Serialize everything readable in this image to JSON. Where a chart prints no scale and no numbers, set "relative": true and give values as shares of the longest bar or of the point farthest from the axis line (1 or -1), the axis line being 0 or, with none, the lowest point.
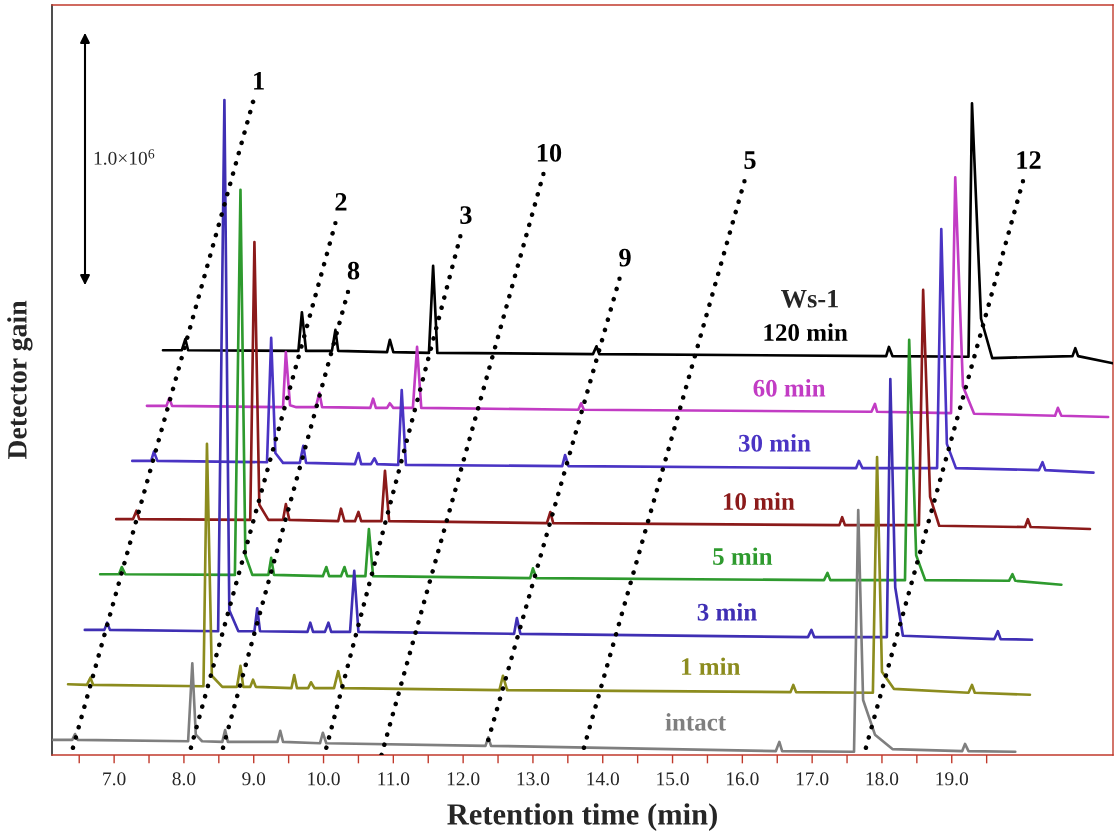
{
  "chart_data": {
    "type": "line",
    "relative": true,
    "xlabel": "Retention time (min)",
    "ylabel": "Detector gain",
    "xlim": [
      6.11,
      21.31
    ],
    "xticks": [
      {
        "value": 6.5,
        "label": null
      },
      {
        "value": 7,
        "label": "7.0"
      },
      {
        "value": 7.5,
        "label": null
      },
      {
        "value": 8,
        "label": "8.0"
      },
      {
        "value": 8.5,
        "label": null
      },
      {
        "value": 9,
        "label": "9.0"
      },
      {
        "value": 9.5,
        "label": null
      },
      {
        "value": 10,
        "label": "10.0"
      },
      {
        "value": 10.5,
        "label": null
      },
      {
        "value": 11,
        "label": "11.0"
      },
      {
        "value": 11.5,
        "label": null
      },
      {
        "value": 12,
        "label": "12.0"
      },
      {
        "value": 12.5,
        "label": null
      },
      {
        "value": 13,
        "label": "13.0"
      },
      {
        "value": 13.5,
        "label": null
      },
      {
        "value": 14,
        "label": "14.0"
      },
      {
        "value": 14.5,
        "label": null
      },
      {
        "value": 15,
        "label": "15.0"
      },
      {
        "value": 15.5,
        "label": null
      },
      {
        "value": 16,
        "label": "16.0"
      },
      {
        "value": 16.5,
        "label": null
      },
      {
        "value": 17,
        "label": "17.0"
      },
      {
        "value": 17.5,
        "label": null
      },
      {
        "value": 18,
        "label": "18.0"
      },
      {
        "value": 18.5,
        "label": null
      },
      {
        "value": 19,
        "label": "19.0"
      },
      {
        "value": 19.5,
        "label": null
      }
    ],
    "grid": false,
    "legend": false,
    "line_style": "solid",
    "annotations": [
      "Ws-1",
      "1.0×10$^{6}$"
    ],
    "series": [
      {
        "name": "intact",
        "color": "#7f7f7f",
        "x": [
          6.13,
          6.4,
          6.44,
          6.48,
          8.06,
          8.12,
          8.17,
          8.26,
          8.55,
          8.59,
          8.63,
          9.34,
          9.38,
          9.42,
          9.95,
          9.99,
          10.04,
          12.32,
          12.36,
          12.4,
          16.48,
          16.53,
          16.57,
          17.6,
          17.66,
          17.73,
          17.9,
          18.15,
          19.15,
          19.19,
          19.24,
          19.91
        ],
        "values": [
          0.023,
          0.023,
          0.032,
          0.023,
          0.021,
          0.14,
          0.031,
          0.021,
          0.02,
          0.038,
          0.02,
          0.02,
          0.037,
          0.02,
          0.018,
          0.034,
          0.018,
          0.014,
          0.027,
          0.014,
          0.006,
          0.02,
          0.006,
          0.005,
          0.374,
          0.084,
          0.031,
          0.009,
          0.006,
          0.017,
          0.006,
          0.005
        ]
      },
      {
        "name": "1 min",
        "color": "#8c8c1e",
        "x": [
          6.34,
          6.61,
          6.66,
          6.7,
          8.28,
          8.33,
          8.4,
          8.55,
          8.76,
          8.81,
          8.85,
          8.95,
          8.99,
          9.03,
          9.54,
          9.58,
          9.62,
          9.78,
          9.82,
          9.87,
          10.15,
          10.21,
          10.27,
          12.52,
          12.57,
          12.63,
          16.69,
          16.73,
          16.77,
          17.87,
          17.93,
          18.0,
          18.17,
          19.24,
          19.29,
          19.33,
          20.12
        ],
        "values": [
          0.108,
          0.107,
          0.118,
          0.107,
          0.105,
          0.475,
          0.121,
          0.104,
          0.104,
          0.136,
          0.104,
          0.104,
          0.115,
          0.104,
          0.102,
          0.122,
          0.102,
          0.102,
          0.111,
          0.102,
          0.102,
          0.128,
          0.102,
          0.099,
          0.121,
          0.099,
          0.096,
          0.107,
          0.096,
          0.095,
          0.455,
          0.127,
          0.101,
          0.095,
          0.107,
          0.095,
          0.092
        ]
      },
      {
        "name": "3 min",
        "color": "#3f2fb4",
        "x": [
          6.58,
          6.86,
          6.9,
          6.94,
          8.49,
          8.58,
          8.65,
          8.78,
          9.01,
          9.05,
          9.09,
          9.77,
          9.81,
          9.85,
          10.02,
          10.07,
          10.11,
          10.38,
          10.44,
          10.5,
          12.73,
          12.77,
          12.82,
          16.94,
          16.99,
          17.03,
          18.07,
          18.12,
          18.19,
          18.3,
          19.61,
          19.66,
          19.7,
          20.15
        ],
        "values": [
          0.191,
          0.191,
          0.202,
          0.191,
          0.189,
          1.0,
          0.221,
          0.189,
          0.189,
          0.224,
          0.189,
          0.188,
          0.202,
          0.188,
          0.188,
          0.202,
          0.188,
          0.188,
          0.281,
          0.188,
          0.185,
          0.209,
          0.185,
          0.18,
          0.191,
          0.18,
          0.18,
          0.574,
          0.256,
          0.182,
          0.177,
          0.189,
          0.177,
          0.176
        ]
      },
      {
        "name": "5 min",
        "color": "#2e9a2e",
        "x": [
          6.8,
          7.07,
          7.11,
          7.16,
          8.73,
          8.81,
          8.88,
          8.98,
          9.21,
          9.25,
          9.29,
          9.99,
          10.04,
          10.08,
          10.25,
          10.3,
          10.34,
          10.6,
          10.65,
          10.71,
          12.96,
          13.0,
          13.05,
          17.17,
          17.22,
          17.26,
          18.33,
          18.39,
          18.49,
          18.62,
          19.82,
          19.87,
          19.91,
          20.57
        ],
        "values": [
          0.276,
          0.276,
          0.287,
          0.276,
          0.275,
          0.863,
          0.305,
          0.275,
          0.275,
          0.301,
          0.275,
          0.273,
          0.287,
          0.273,
          0.273,
          0.287,
          0.273,
          0.273,
          0.345,
          0.273,
          0.27,
          0.285,
          0.27,
          0.267,
          0.278,
          0.267,
          0.267,
          0.634,
          0.305,
          0.267,
          0.266,
          0.276,
          0.266,
          0.26
        ]
      },
      {
        "name": "10 min",
        "color": "#8b1a1a",
        "x": [
          7.03,
          7.27,
          7.32,
          7.36,
          8.95,
          9.01,
          9.08,
          9.21,
          9.42,
          9.46,
          9.51,
          10.21,
          10.25,
          10.3,
          10.45,
          10.5,
          10.54,
          10.83,
          10.88,
          10.94,
          13.2,
          13.25,
          13.29,
          17.39,
          17.43,
          17.47,
          18.53,
          18.59,
          18.69,
          18.82,
          20.05,
          20.09,
          20.13,
          20.98
        ],
        "values": [
          0.36,
          0.36,
          0.373,
          0.36,
          0.359,
          0.783,
          0.382,
          0.359,
          0.359,
          0.383,
          0.359,
          0.357,
          0.376,
          0.357,
          0.357,
          0.371,
          0.357,
          0.357,
          0.434,
          0.357,
          0.354,
          0.371,
          0.354,
          0.351,
          0.363,
          0.351,
          0.351,
          0.71,
          0.394,
          0.35,
          0.348,
          0.36,
          0.348,
          0.345
        ]
      },
      {
        "name": "30 min",
        "color": "#4a34c4",
        "x": [
          7.26,
          7.53,
          7.57,
          7.62,
          9.19,
          9.25,
          9.31,
          9.42,
          9.66,
          9.71,
          9.75,
          10.45,
          10.5,
          10.54,
          10.68,
          10.73,
          10.77,
          11.07,
          11.12,
          11.18,
          13.42,
          13.46,
          13.51,
          17.63,
          17.67,
          17.72,
          18.79,
          18.85,
          18.93,
          19.06,
          20.25,
          20.3,
          20.34,
          21.03
        ],
        "values": [
          0.449,
          0.449,
          0.463,
          0.449,
          0.447,
          0.637,
          0.461,
          0.446,
          0.446,
          0.472,
          0.446,
          0.444,
          0.461,
          0.444,
          0.444,
          0.453,
          0.444,
          0.443,
          0.557,
          0.443,
          0.441,
          0.458,
          0.441,
          0.438,
          0.449,
          0.438,
          0.438,
          0.803,
          0.475,
          0.438,
          0.435,
          0.447,
          0.435,
          0.431
        ]
      },
      {
        "name": "60 min",
        "color": "#c23cc4",
        "x": [
          7.47,
          7.75,
          7.79,
          7.83,
          9.42,
          9.46,
          9.52,
          9.61,
          9.89,
          9.94,
          9.98,
          10.67,
          10.71,
          10.75,
          10.91,
          10.95,
          11.0,
          11.28,
          11.34,
          11.4,
          13.65,
          13.69,
          13.73,
          17.85,
          17.9,
          17.93,
          18.99,
          19.05,
          19.16,
          19.32,
          20.48,
          20.52,
          20.57,
          21.24
        ],
        "values": [
          0.533,
          0.533,
          0.545,
          0.533,
          0.531,
          0.615,
          0.534,
          0.531,
          0.531,
          0.553,
          0.531,
          0.53,
          0.544,
          0.53,
          0.53,
          0.537,
          0.53,
          0.53,
          0.623,
          0.53,
          0.527,
          0.537,
          0.527,
          0.524,
          0.536,
          0.524,
          0.522,
          0.882,
          0.563,
          0.521,
          0.518,
          0.53,
          0.518,
          0.516
        ]
      },
      {
        "name": "120 min",
        "color": "#000000",
        "x": [
          7.7,
          7.97,
          8.02,
          8.06,
          9.64,
          9.69,
          9.75,
          10.12,
          10.17,
          10.21,
          10.91,
          10.95,
          11.0,
          11.51,
          11.57,
          11.63,
          13.86,
          13.91,
          13.95,
          18.06,
          18.1,
          18.15,
          19.24,
          19.29,
          19.42,
          19.58,
          20.73,
          20.77,
          20.81,
          21.31
        ],
        "values": [
          0.618,
          0.618,
          0.635,
          0.618,
          0.617,
          0.676,
          0.617,
          0.617,
          0.649,
          0.617,
          0.615,
          0.634,
          0.615,
          0.614,
          0.747,
          0.614,
          0.612,
          0.624,
          0.612,
          0.609,
          0.623,
          0.609,
          0.608,
          0.995,
          0.666,
          0.606,
          0.609,
          0.621,
          0.609,
          0.598
        ]
      },
      {
        "name": "1",
        "color": "#000000",
        "line_style": "dotted",
        "x": [
          6.41,
          8.99
        ],
        "values": [
          0.011,
          0.997
        ]
      },
      {
        "name": "2",
        "color": "#000000",
        "line_style": "dotted",
        "x": [
          8.1,
          10.17
        ],
        "values": [
          0.011,
          0.812
        ]
      },
      {
        "name": "8",
        "color": "#000000",
        "line_style": "dotted",
        "x": [
          8.56,
          10.35
        ],
        "values": [
          0.011,
          0.707
        ]
      },
      {
        "name": "3",
        "color": "#000000",
        "line_style": "dotted",
        "x": [
          10.04,
          11.96
        ],
        "values": [
          0.011,
          0.792
        ]
      },
      {
        "name": "10",
        "color": "#000000",
        "line_style": "dotted",
        "x": [
          10.83,
          13.15
        ],
        "values": [
          0.0,
          0.887
        ]
      },
      {
        "name": "9",
        "color": "#000000",
        "line_style": "dotted",
        "x": [
          12.36,
          14.24
        ],
        "values": [
          0.023,
          0.727
        ]
      },
      {
        "name": "5",
        "color": "#000000",
        "line_style": "dotted",
        "x": [
          13.73,
          16.03
        ],
        "values": [
          0.011,
          0.876
        ]
      },
      {
        "name": "12",
        "color": "#000000",
        "line_style": "dotted",
        "x": [
          17.77,
          20.02
        ],
        "values": [
          0.011,
          0.876
        ]
      }
    ]
  }
}
